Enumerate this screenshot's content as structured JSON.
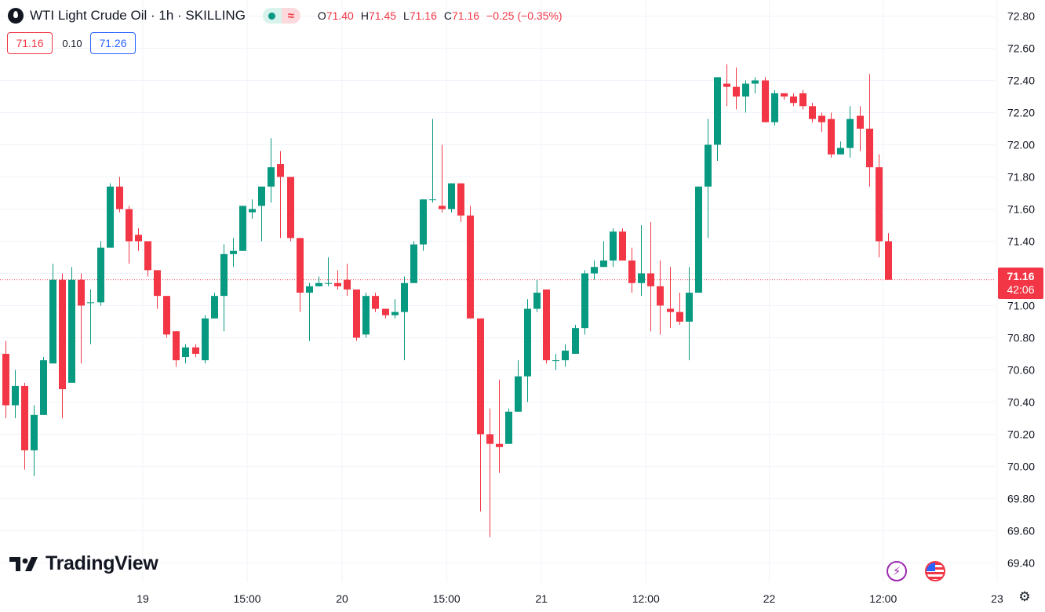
{
  "header": {
    "title": "WTI Light Crude Oil · 1h · SKILLING",
    "symbol_icon": "oil-drop-icon",
    "ohlc": {
      "o_label": "O",
      "o": "71.40",
      "h_label": "H",
      "h": "71.45",
      "l_label": "L",
      "l": "71.16",
      "c_label": "C",
      "c": "71.16",
      "change": "−0.25 (−0.35%)"
    },
    "status_icons": [
      "market-open-dot-icon",
      "approx-icon"
    ]
  },
  "quote": {
    "bid": "71.16",
    "spread": "0.10",
    "ask": "71.26"
  },
  "price_tag": {
    "price": "71.16",
    "countdown": "42:06"
  },
  "branding": {
    "logo_text": "TradingView"
  },
  "colors": {
    "up": "#089981",
    "down": "#f23645",
    "grid": "#f0f3fa",
    "axis_text": "#131722",
    "ask": "#2962ff"
  },
  "chart_data": {
    "type": "candlestick",
    "x_labels": [
      {
        "i": 14.5,
        "label": "19"
      },
      {
        "i": 25.5,
        "label": "15:00"
      },
      {
        "i": 35.5,
        "label": "20"
      },
      {
        "i": 46.5,
        "label": "15:00"
      },
      {
        "i": 56.5,
        "label": "21"
      },
      {
        "i": 67.5,
        "label": "12:00"
      },
      {
        "i": 80.5,
        "label": "22"
      },
      {
        "i": 92.5,
        "label": "12:00"
      },
      {
        "i": 104.5,
        "label": "23"
      }
    ],
    "y_range": [
      69.28,
      72.9
    ],
    "y_ticks": [
      "72.80",
      "72.60",
      "72.40",
      "72.20",
      "72.00",
      "71.80",
      "71.60",
      "71.40",
      "71.20",
      "71.00",
      "70.80",
      "70.60",
      "70.40",
      "70.20",
      "70.00",
      "69.80",
      "69.60",
      "69.40"
    ],
    "last_price": 71.16,
    "candles": [
      [
        70.7,
        70.78,
        70.3,
        70.38
      ],
      [
        70.38,
        70.6,
        70.3,
        70.5
      ],
      [
        70.5,
        70.52,
        69.98,
        70.1
      ],
      [
        70.1,
        70.38,
        69.94,
        70.32
      ],
      [
        70.32,
        70.68,
        70.32,
        70.66
      ],
      [
        70.64,
        71.26,
        70.64,
        71.16
      ],
      [
        71.16,
        71.2,
        70.3,
        70.48
      ],
      [
        70.52,
        71.24,
        70.52,
        71.16
      ],
      [
        71.16,
        71.2,
        70.64,
        71.0
      ],
      [
        71.02,
        71.1,
        70.76,
        71.02
      ],
      [
        71.02,
        71.4,
        71.0,
        71.36
      ],
      [
        71.36,
        71.76,
        71.36,
        71.74
      ],
      [
        71.74,
        71.8,
        71.58,
        71.6
      ],
      [
        71.6,
        71.62,
        71.26,
        71.4
      ],
      [
        71.44,
        71.48,
        71.34,
        71.4
      ],
      [
        71.4,
        71.4,
        71.18,
        71.22
      ],
      [
        71.22,
        71.22,
        70.98,
        71.06
      ],
      [
        71.06,
        71.06,
        70.8,
        70.82
      ],
      [
        70.84,
        70.84,
        70.62,
        70.66
      ],
      [
        70.68,
        70.76,
        70.64,
        70.74
      ],
      [
        70.74,
        70.76,
        70.68,
        70.7
      ],
      [
        70.66,
        70.94,
        70.64,
        70.92
      ],
      [
        70.92,
        71.08,
        70.92,
        71.06
      ],
      [
        71.06,
        71.38,
        70.84,
        71.32
      ],
      [
        71.32,
        71.42,
        71.24,
        71.34
      ],
      [
        71.34,
        71.62,
        71.34,
        71.62
      ],
      [
        71.58,
        71.66,
        71.54,
        71.6
      ],
      [
        71.62,
        71.72,
        71.4,
        71.74
      ],
      [
        71.74,
        72.04,
        71.64,
        71.86
      ],
      [
        71.88,
        71.96,
        71.42,
        71.8
      ],
      [
        71.8,
        71.8,
        71.4,
        71.42
      ],
      [
        71.42,
        71.42,
        70.96,
        71.08
      ],
      [
        71.08,
        71.14,
        70.78,
        71.12
      ],
      [
        71.12,
        71.18,
        71.12,
        71.14
      ],
      [
        71.14,
        71.3,
        71.12,
        71.14
      ],
      [
        71.14,
        71.22,
        71.1,
        71.12
      ],
      [
        71.16,
        71.26,
        71.06,
        71.1
      ],
      [
        71.1,
        71.1,
        70.78,
        70.8
      ],
      [
        70.82,
        71.08,
        70.8,
        71.06
      ],
      [
        71.06,
        71.08,
        70.96,
        70.98
      ],
      [
        70.98,
        70.98,
        70.92,
        70.94
      ],
      [
        70.94,
        71.04,
        70.92,
        70.96
      ],
      [
        70.96,
        71.18,
        70.66,
        71.14
      ],
      [
        71.14,
        71.4,
        71.14,
        71.38
      ],
      [
        71.38,
        71.66,
        71.34,
        71.66
      ],
      [
        71.66,
        72.16,
        71.64,
        71.66
      ],
      [
        71.62,
        72.0,
        71.58,
        71.6
      ],
      [
        71.6,
        71.76,
        71.58,
        71.76
      ],
      [
        71.76,
        71.76,
        71.52,
        71.56
      ],
      [
        71.56,
        71.62,
        70.92,
        70.92
      ],
      [
        70.92,
        70.92,
        69.72,
        70.2
      ],
      [
        70.2,
        70.36,
        69.56,
        70.14
      ],
      [
        70.14,
        70.54,
        69.96,
        70.12
      ],
      [
        70.14,
        70.36,
        70.14,
        70.34
      ],
      [
        70.34,
        70.66,
        70.34,
        70.56
      ],
      [
        70.56,
        71.04,
        70.4,
        70.98
      ],
      [
        70.98,
        71.16,
        70.96,
        71.08
      ],
      [
        71.1,
        71.1,
        70.64,
        70.66
      ],
      [
        70.66,
        70.7,
        70.6,
        70.66
      ],
      [
        70.66,
        70.76,
        70.62,
        70.72
      ],
      [
        70.7,
        70.88,
        70.7,
        70.86
      ],
      [
        70.86,
        71.22,
        70.82,
        71.2
      ],
      [
        71.2,
        71.28,
        71.16,
        71.24
      ],
      [
        71.24,
        71.4,
        71.24,
        71.28
      ],
      [
        71.28,
        71.48,
        71.24,
        71.46
      ],
      [
        71.46,
        71.48,
        71.28,
        71.28
      ],
      [
        71.28,
        71.36,
        71.08,
        71.14
      ],
      [
        71.14,
        71.5,
        71.06,
        71.2
      ],
      [
        71.2,
        71.52,
        70.84,
        71.12
      ],
      [
        71.12,
        71.28,
        70.82,
        71.0
      ],
      [
        70.98,
        71.24,
        70.86,
        70.96
      ],
      [
        70.96,
        71.08,
        70.88,
        70.9
      ],
      [
        70.9,
        71.24,
        70.66,
        71.08
      ],
      [
        71.08,
        71.74,
        71.08,
        71.74
      ],
      [
        71.74,
        72.16,
        71.42,
        72.0
      ],
      [
        72.0,
        72.42,
        71.9,
        72.42
      ],
      [
        72.38,
        72.5,
        72.24,
        72.36
      ],
      [
        72.36,
        72.48,
        72.22,
        72.3
      ],
      [
        72.3,
        72.4,
        72.2,
        72.38
      ],
      [
        72.38,
        72.42,
        72.32,
        72.4
      ],
      [
        72.4,
        72.42,
        72.14,
        72.14
      ],
      [
        72.14,
        72.34,
        72.12,
        72.32
      ],
      [
        72.32,
        72.32,
        72.28,
        72.3
      ],
      [
        72.3,
        72.32,
        72.24,
        72.26
      ],
      [
        72.32,
        72.34,
        72.22,
        72.24
      ],
      [
        72.24,
        72.26,
        72.14,
        72.16
      ],
      [
        72.18,
        72.2,
        72.08,
        72.14
      ],
      [
        72.16,
        72.2,
        71.92,
        71.94
      ],
      [
        71.94,
        72.02,
        71.94,
        71.98
      ],
      [
        71.98,
        72.24,
        71.92,
        72.16
      ],
      [
        72.18,
        72.24,
        71.96,
        72.1
      ],
      [
        72.1,
        72.44,
        71.74,
        71.86
      ],
      [
        71.86,
        71.94,
        71.3,
        71.4
      ],
      [
        71.4,
        71.45,
        71.16,
        71.16
      ]
    ]
  }
}
